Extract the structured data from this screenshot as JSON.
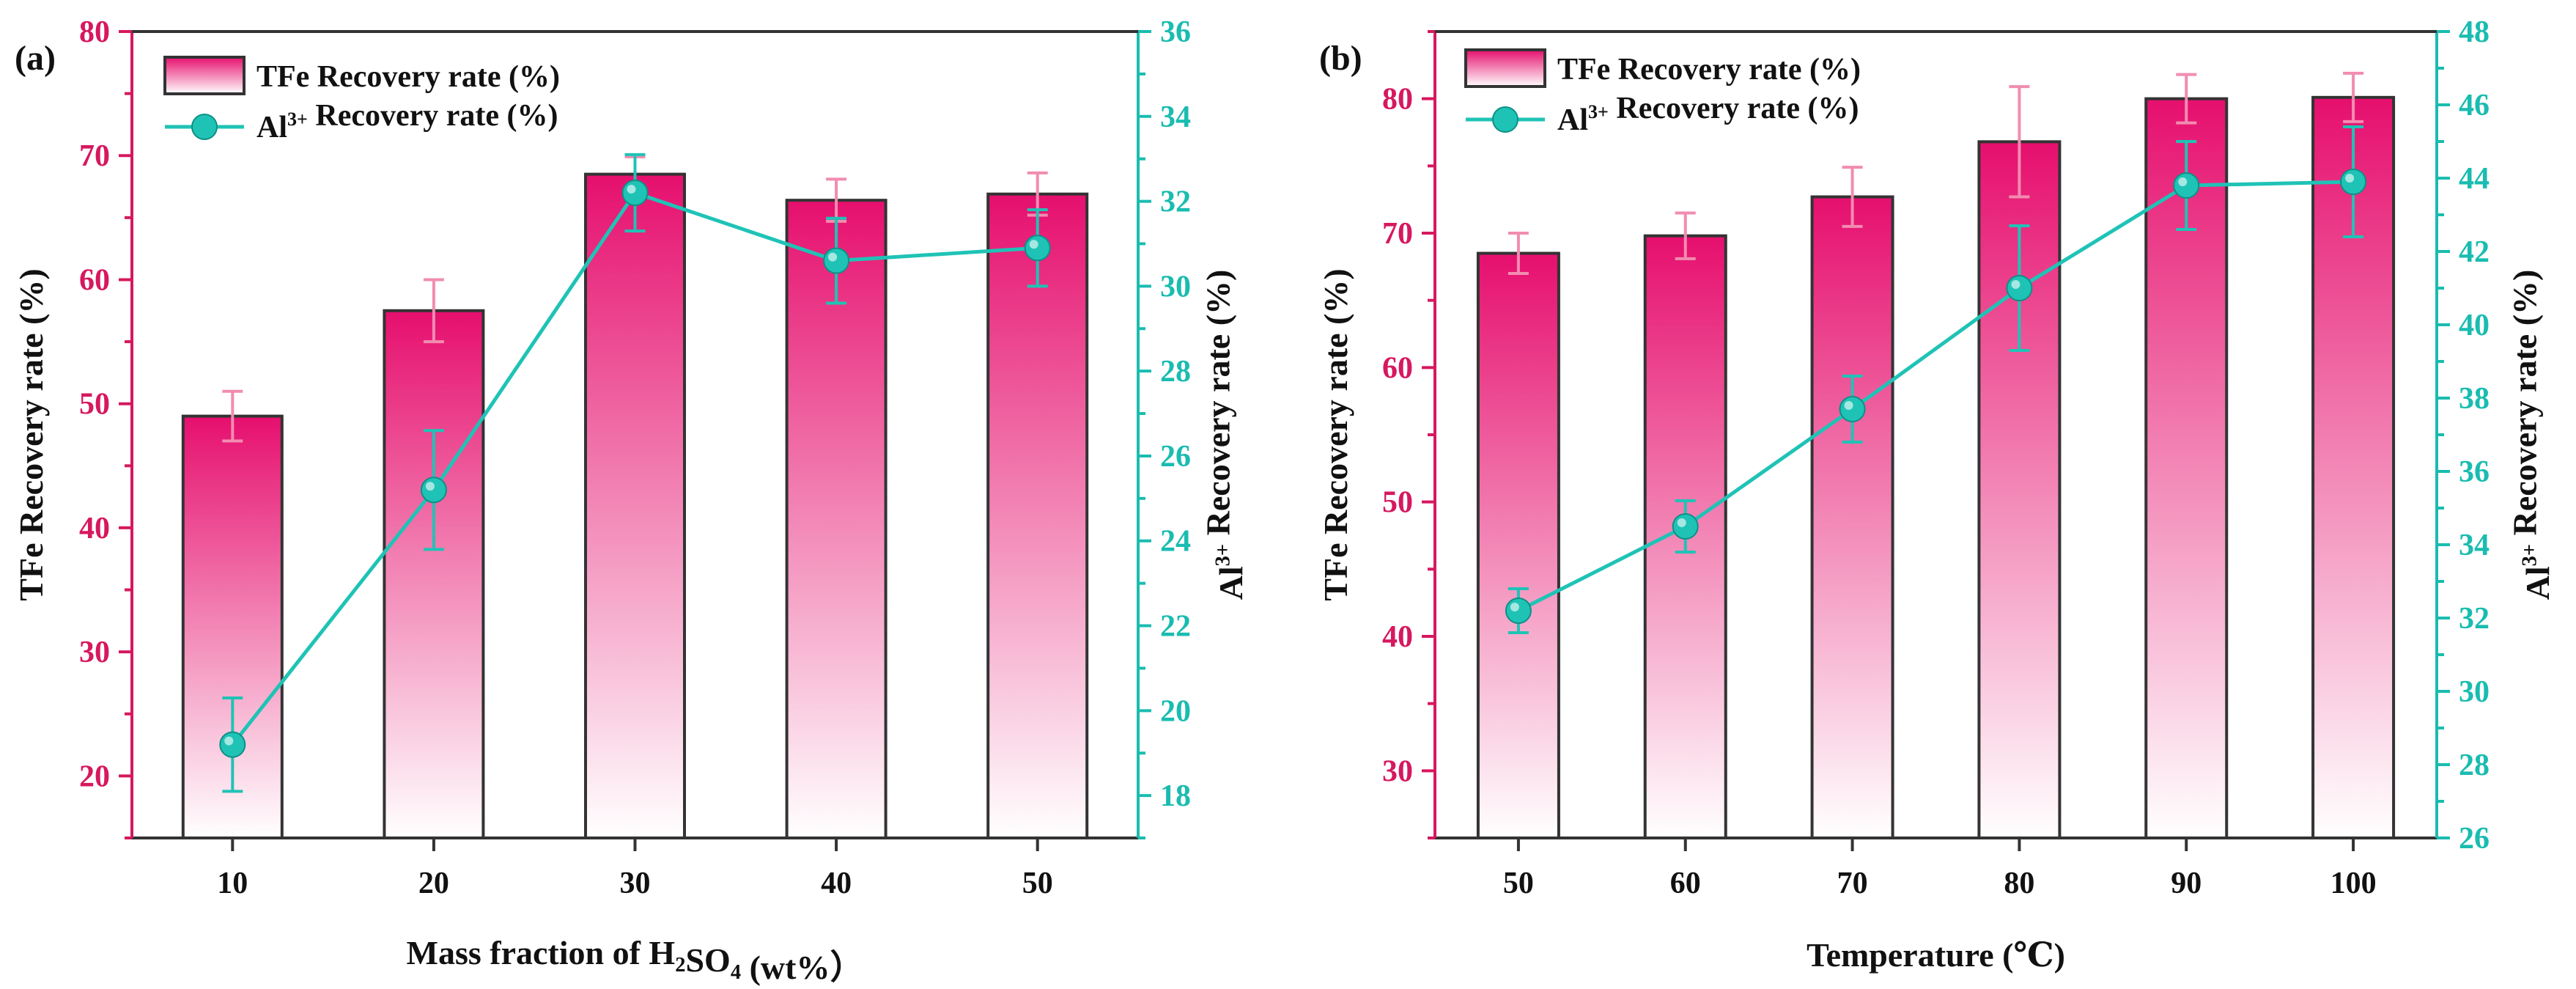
{
  "colors": {
    "bar_top": "#e60f6e",
    "bar_bottom": "#ffffff",
    "bar_stroke": "#333333",
    "bar_error": "#f28cb1",
    "left_axis": "#d6185f",
    "right_axis": "#1abcb0",
    "line": "#1fc3b6",
    "marker": "#1fc3b6",
    "text": "#111111"
  },
  "chart_data": [
    {
      "type": "bar+line",
      "panel_label": "(a)",
      "categories": [
        "10",
        "20",
        "30",
        "40",
        "50"
      ],
      "xlabel_parts": [
        {
          "t": "Mass fraction of H"
        },
        {
          "t": "2",
          "sub": true
        },
        {
          "t": "SO"
        },
        {
          "t": "4",
          "sub": true
        },
        {
          "t": " (wt%）"
        }
      ],
      "ylabel_left": "TFe Recovery rate (%)",
      "ylabel_right_parts": [
        {
          "t": "Al"
        },
        {
          "t": "3+",
          "sup": true
        },
        {
          "t": " Recovery rate (%)"
        }
      ],
      "ylim_left": [
        15,
        80
      ],
      "yticks_left": [
        20,
        30,
        40,
        50,
        60,
        70,
        80
      ],
      "ylim_right": [
        17,
        36
      ],
      "yticks_right": [
        18,
        20,
        22,
        24,
        26,
        28,
        30,
        32,
        34,
        36
      ],
      "bar_series": {
        "name": "TFe Recovery rate (%)",
        "values": [
          49.0,
          57.5,
          68.5,
          66.4,
          66.9
        ],
        "errors": [
          2.0,
          2.5,
          1.4,
          1.7,
          1.7
        ]
      },
      "line_series": {
        "name_parts": [
          {
            "t": "Al"
          },
          {
            "t": "3+",
            "sup": true
          },
          {
            "t": " Recovery rate (%)"
          }
        ],
        "values": [
          19.2,
          25.2,
          32.2,
          30.6,
          30.9
        ],
        "errors": [
          1.1,
          1.4,
          0.9,
          1.0,
          0.9
        ]
      },
      "legend_position": "top-left"
    },
    {
      "type": "bar+line",
      "panel_label": "(b)",
      "categories": [
        "50",
        "60",
        "70",
        "80",
        "90",
        "100"
      ],
      "xlabel_parts": [
        {
          "t": "Temperature (℃)"
        }
      ],
      "ylabel_left": "TFe Recovery rate (%)",
      "ylabel_right_parts": [
        {
          "t": "Al"
        },
        {
          "t": "3+",
          "sup": true
        },
        {
          "t": " Recovery rate (%)"
        }
      ],
      "ylim_left": [
        25,
        85
      ],
      "yticks_left": [
        30,
        40,
        50,
        60,
        70,
        80
      ],
      "ylim_right": [
        26,
        48
      ],
      "yticks_right": [
        26,
        28,
        30,
        32,
        34,
        36,
        38,
        40,
        42,
        44,
        46,
        48
      ],
      "bar_series": {
        "name": "TFe Recovery rate (%)",
        "values": [
          68.5,
          69.8,
          72.7,
          76.8,
          80.0,
          80.1
        ],
        "errors": [
          1.5,
          1.7,
          2.2,
          4.1,
          1.8,
          1.8
        ]
      },
      "line_series": {
        "name_parts": [
          {
            "t": "Al"
          },
          {
            "t": "3+",
            "sup": true
          },
          {
            "t": " Recovery rate (%)"
          }
        ],
        "values": [
          32.2,
          34.5,
          37.7,
          41.0,
          43.8,
          43.9
        ],
        "errors": [
          0.6,
          0.7,
          0.9,
          1.7,
          1.2,
          1.5
        ]
      },
      "legend_position": "top-left"
    }
  ]
}
